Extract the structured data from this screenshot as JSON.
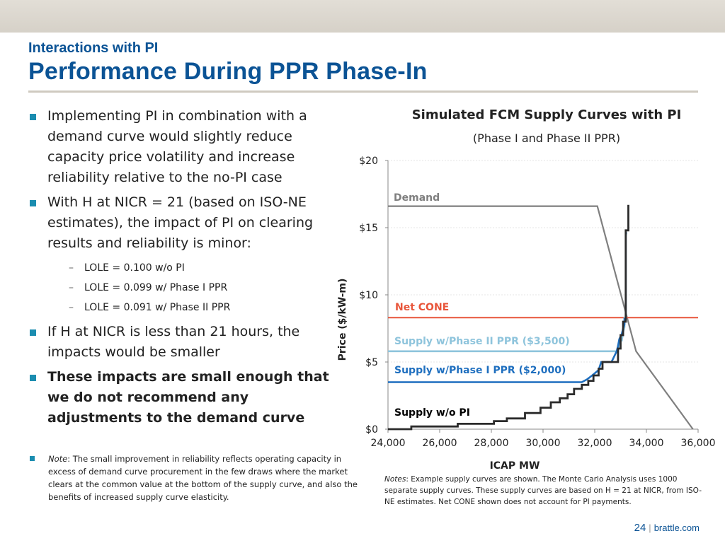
{
  "header": {
    "kicker": "Interactions with PI",
    "title": "Performance During PPR Phase-In"
  },
  "bullets": [
    "Implementing PI in combination with a demand curve would slightly reduce capacity price volatility and increase reliability relative to the no-PI case",
    "With H at NICR = 21 (based on ISO-NE estimates), the impact of PI on clearing results and reliability is minor:",
    "If H at NICR is less than 21 hours, the impacts would be smaller",
    "These impacts are small enough that we do not recommend any adjustments to the demand curve"
  ],
  "sub_bullets": [
    "LOLE = 0.100 w/o PI",
    "LOLE = 0.099 w/ Phase I PPR",
    "LOLE = 0.091 w/ Phase II PPR"
  ],
  "note": {
    "label": "Note",
    "text": ": The small improvement in reliability reflects operating capacity in excess of demand curve procurement in the few draws where the market clears at the common value at the bottom of the supply curve, and also the benefits of increased supply curve elasticity."
  },
  "chart_notes": {
    "label": "Notes",
    "text": ": Example supply curves are shown. The Monte Carlo Analysis uses 1000 separate supply curves. These supply curves are based on H = 21 at NICR, from ISO-NE estimates. Net CONE shown does not account for PI payments."
  },
  "footer": {
    "page": "24",
    "site": "brattle.com"
  },
  "colors": {
    "brand_blue": "#0b5395",
    "bullet_teal": "#1b8db0",
    "demand": "#7f7f7f",
    "net_cone": "#e8553a",
    "supply_phase2": "#8ec4dc",
    "supply_phase1": "#1f6fbf",
    "supply_no_pi": "#2b2b2b"
  },
  "chart_data": {
    "type": "line",
    "title": "Simulated FCM Supply Curves with PI",
    "subtitle": "(Phase I and Phase II PPR)",
    "xlabel": "ICAP MW",
    "ylabel": "Price ($/kW-m)",
    "xlim": [
      24000,
      36000
    ],
    "ylim": [
      0,
      20
    ],
    "x_ticks": [
      "24,000",
      "26,000",
      "28,000",
      "30,000",
      "32,000",
      "34,000",
      "36,000"
    ],
    "y_ticks": [
      "$0",
      "$5",
      "$10",
      "$15",
      "$20"
    ],
    "x_tick_values": [
      24000,
      26000,
      28000,
      30000,
      32000,
      34000,
      36000
    ],
    "y_tick_values": [
      0,
      5,
      10,
      15,
      20
    ],
    "grid": "horizontal",
    "series": [
      {
        "name": "Demand",
        "x": [
          24000,
          32100,
          33600,
          35800
        ],
        "y": [
          16.6,
          16.6,
          5.8,
          0
        ]
      },
      {
        "name": "Net CONE",
        "x": [
          24000,
          36000
        ],
        "y": [
          8.3,
          8.3
        ]
      },
      {
        "name": "Supply w/Phase II PPR ($3,500)",
        "x": [
          24000,
          32900,
          32950,
          33050,
          33100,
          33150,
          33150,
          33200,
          33200,
          33250
        ],
        "y": [
          5.8,
          5.8,
          6.6,
          6.6,
          7.2,
          7.6,
          8.3,
          8.3,
          14.5,
          14.5
        ]
      },
      {
        "name": "Supply w/Phase I PPR ($2,000)",
        "x": [
          24000,
          31500,
          31700,
          31900,
          32150,
          32250,
          32650,
          32850,
          32900,
          32950,
          33050,
          33100,
          33150,
          33150,
          33200,
          33200,
          33250
        ],
        "y": [
          3.5,
          3.5,
          3.7,
          4.0,
          4.4,
          5.0,
          5.0,
          5.8,
          6.2,
          6.7,
          7.1,
          7.5,
          7.8,
          8.2,
          8.2,
          14.6,
          14.6
        ]
      },
      {
        "name": "Supply w/o PI",
        "x": [
          24000,
          24900,
          24900,
          26700,
          26700,
          28100,
          28100,
          28600,
          28600,
          29300,
          29300,
          29900,
          29900,
          30300,
          30300,
          30650,
          30650,
          30950,
          30950,
          31200,
          31200,
          31500,
          31500,
          31750,
          31750,
          31950,
          31950,
          32150,
          32150,
          32300,
          32300,
          32900,
          32900,
          33000,
          33000,
          33100,
          33100,
          33200,
          33200,
          33300,
          33300
        ],
        "y": [
          0,
          0,
          0.2,
          0.2,
          0.4,
          0.4,
          0.6,
          0.6,
          0.8,
          0.8,
          1.2,
          1.2,
          1.6,
          1.6,
          2.0,
          2.0,
          2.3,
          2.3,
          2.6,
          2.6,
          3.0,
          3.0,
          3.3,
          3.3,
          3.6,
          3.6,
          4.0,
          4.0,
          4.5,
          4.5,
          5.0,
          5.0,
          6.0,
          6.0,
          7.0,
          7.0,
          8.0,
          8.0,
          14.8,
          14.8,
          16.7
        ]
      }
    ],
    "annotations": [
      "Demand",
      "Net CONE",
      "Supply w/Phase II PPR ($3,500)",
      "Supply w/Phase I PPR ($2,000)",
      "Supply w/o PI"
    ]
  }
}
